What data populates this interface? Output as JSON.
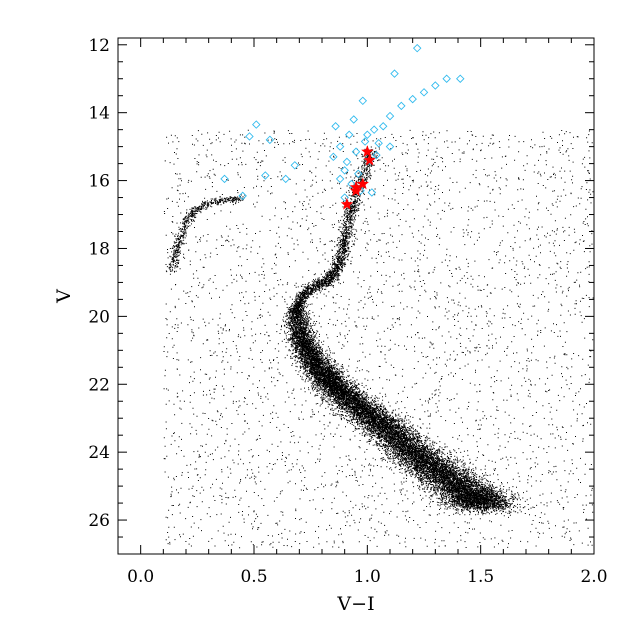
{
  "chart_data": {
    "type": "scatter",
    "title": "",
    "xlabel": "V−I",
    "ylabel": "V",
    "xlim": [
      -0.1,
      2.0
    ],
    "ylim": [
      27,
      11.8
    ],
    "y_inverted": true,
    "x_ticks": [
      0.0,
      0.5,
      1.0,
      1.5,
      2.0
    ],
    "x_tick_labels": [
      "0.0",
      "0.5",
      "1.0",
      "1.5",
      "2.0"
    ],
    "y_ticks": [
      12,
      14,
      16,
      18,
      20,
      22,
      24,
      26
    ],
    "y_tick_labels": [
      "12",
      "14",
      "16",
      "18",
      "20",
      "22",
      "24",
      "26"
    ],
    "grid": false,
    "colors": {
      "field_stars": "#000000",
      "diamonds": "#33bbee",
      "stars": "#ff0000"
    },
    "series": [
      {
        "marker": "point",
        "description_free": true,
        "sequences": {
          "main_sequence_ridge": [
            [
              0.68,
              19.9
            ],
            [
              0.72,
              20.8
            ],
            [
              0.78,
              21.5
            ],
            [
              0.86,
              22.1
            ],
            [
              0.97,
              22.7
            ],
            [
              1.08,
              23.3
            ],
            [
              1.2,
              24.0
            ],
            [
              1.32,
              24.6
            ],
            [
              1.45,
              25.2
            ],
            [
              1.52,
              25.6
            ]
          ],
          "subgiant_branch": [
            [
              0.68,
              19.9
            ],
            [
              0.72,
              19.3
            ],
            [
              0.8,
              19.0
            ],
            [
              0.85,
              18.8
            ],
            [
              0.88,
              18.3
            ],
            [
              0.9,
              17.7
            ],
            [
              0.92,
              17.0
            ],
            [
              0.94,
              16.5
            ],
            [
              0.98,
              15.8
            ],
            [
              1.02,
              15.1
            ]
          ],
          "horizontal_branch": [
            [
              0.45,
              16.5
            ],
            [
              0.38,
              16.55
            ],
            [
              0.3,
              16.65
            ],
            [
              0.24,
              16.85
            ],
            [
              0.2,
              17.2
            ],
            [
              0.17,
              17.7
            ],
            [
              0.15,
              18.2
            ],
            [
              0.13,
              18.7
            ]
          ]
        }
      },
      {
        "marker": "diamond",
        "points": [
          [
            1.22,
            12.1
          ],
          [
            1.35,
            13.0
          ],
          [
            1.41,
            13.0
          ],
          [
            1.12,
            12.85
          ],
          [
            1.25,
            13.4
          ],
          [
            1.3,
            13.2
          ],
          [
            1.2,
            13.6
          ],
          [
            1.15,
            13.8
          ],
          [
            1.1,
            14.1
          ],
          [
            1.07,
            14.4
          ],
          [
            0.98,
            13.65
          ],
          [
            1.03,
            14.5
          ],
          [
            0.94,
            14.2
          ],
          [
            0.86,
            14.4
          ],
          [
            0.92,
            14.65
          ],
          [
            0.99,
            14.85
          ],
          [
            1.05,
            14.9
          ],
          [
            1.1,
            15.0
          ],
          [
            0.88,
            15.0
          ],
          [
            0.95,
            15.15
          ],
          [
            1.01,
            15.4
          ],
          [
            0.91,
            15.45
          ],
          [
            0.85,
            15.3
          ],
          [
            0.9,
            15.7
          ],
          [
            0.96,
            15.8
          ],
          [
            0.88,
            15.95
          ],
          [
            0.93,
            16.1
          ],
          [
            0.97,
            16.3
          ],
          [
            1.02,
            16.35
          ],
          [
            0.51,
            14.35
          ],
          [
            0.48,
            14.7
          ],
          [
            0.57,
            14.8
          ],
          [
            0.55,
            15.85
          ],
          [
            0.64,
            15.95
          ],
          [
            0.68,
            15.55
          ],
          [
            0.37,
            15.95
          ],
          [
            0.45,
            16.45
          ],
          [
            0.9,
            16.5
          ],
          [
            1.0,
            14.65
          ],
          [
            1.04,
            15.25
          ]
        ]
      },
      {
        "marker": "star",
        "points": [
          [
            1.0,
            15.15
          ],
          [
            1.01,
            15.4
          ],
          [
            0.98,
            16.1
          ],
          [
            0.95,
            16.2
          ],
          [
            0.95,
            16.3
          ],
          [
            0.91,
            16.7
          ]
        ]
      }
    ]
  }
}
